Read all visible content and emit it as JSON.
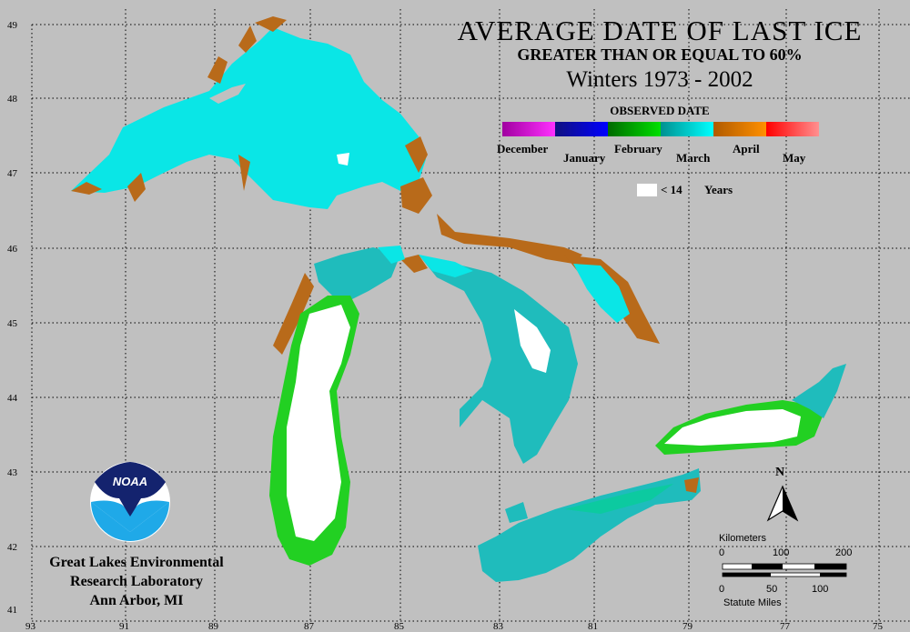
{
  "title": "AVERAGE DATE OF LAST ICE",
  "subtitle": "GREATER THAN OR EQUAL TO 60%",
  "period": "Winters 1973 - 2002",
  "legend": {
    "heading": "OBSERVED DATE",
    "months": [
      "December",
      "January",
      "February",
      "March",
      "April",
      "May"
    ],
    "colors": [
      "#a000a0",
      "#ff30ff",
      "#101080",
      "#0000ff",
      "#006a00",
      "#00e000",
      "#009090",
      "#00ffff",
      "#b05a00",
      "#ff9000",
      "#ff0000",
      "#ff9090"
    ],
    "lt14_label": "< 14",
    "lt14_unit": "Years"
  },
  "axes": {
    "lat_labels": [
      "49",
      "48",
      "47",
      "46",
      "45",
      "44",
      "43",
      "42",
      "41"
    ],
    "lon_labels": [
      "93",
      "91",
      "89",
      "87",
      "85",
      "83",
      "81",
      "79",
      "77",
      "75"
    ]
  },
  "logo_text": "NOAA",
  "credit": [
    "Great Lakes Environmental",
    "Research Laboratory",
    "Ann Arbor, MI"
  ],
  "north_label": "N",
  "scale": {
    "km_label": "Kilometers",
    "km_ticks": [
      "0",
      "100",
      "200"
    ],
    "mi_ticks": [
      "0",
      "50",
      "100"
    ],
    "mi_label": "Statute Miles"
  }
}
